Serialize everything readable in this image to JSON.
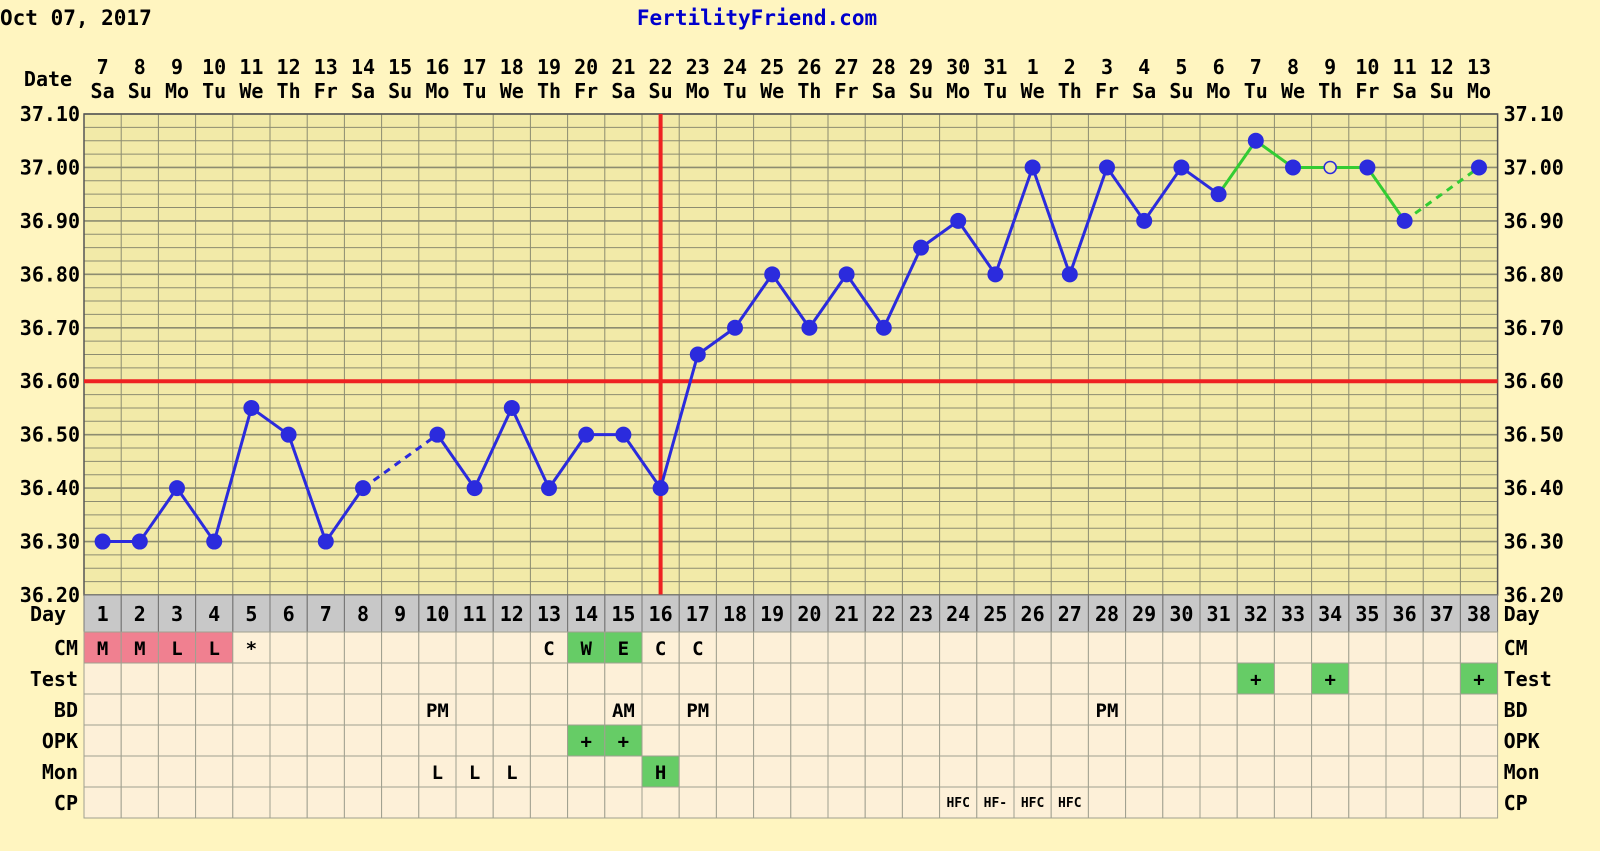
{
  "header": {
    "date": "Oct 07, 2017",
    "site": "FertilityFriend.com"
  },
  "chart_data": {
    "type": "line",
    "title": "",
    "ylim": [
      36.2,
      37.1
    ],
    "y_ticks": [
      "37.10",
      "37.00",
      "36.90",
      "36.80",
      "36.70",
      "36.60",
      "36.50",
      "36.40",
      "36.30",
      "36.20"
    ],
    "date_label": "Date",
    "day_label": "Day",
    "dates": [
      "7",
      "8",
      "9",
      "10",
      "11",
      "12",
      "13",
      "14",
      "15",
      "16",
      "17",
      "18",
      "19",
      "20",
      "21",
      "22",
      "23",
      "24",
      "25",
      "26",
      "27",
      "28",
      "29",
      "30",
      "31",
      "1",
      "2",
      "3",
      "4",
      "5",
      "6",
      "7",
      "8",
      "9",
      "10",
      "11",
      "12",
      "13"
    ],
    "weekdays": [
      "Sa",
      "Su",
      "Mo",
      "Tu",
      "We",
      "Th",
      "Fr",
      "Sa",
      "Su",
      "Mo",
      "Tu",
      "We",
      "Th",
      "Fr",
      "Sa",
      "Su",
      "Mo",
      "Tu",
      "We",
      "Th",
      "Fr",
      "Sa",
      "Su",
      "Mo",
      "Tu",
      "We",
      "Th",
      "Fr",
      "Sa",
      "Su",
      "Mo",
      "Tu",
      "We",
      "Th",
      "Fr",
      "Sa",
      "Su",
      "Mo"
    ],
    "days": [
      "1",
      "2",
      "3",
      "4",
      "5",
      "6",
      "7",
      "8",
      "9",
      "10",
      "11",
      "12",
      "13",
      "14",
      "15",
      "16",
      "17",
      "18",
      "19",
      "20",
      "21",
      "22",
      "23",
      "24",
      "25",
      "26",
      "27",
      "28",
      "29",
      "30",
      "31",
      "32",
      "33",
      "34",
      "35",
      "36",
      "37",
      "38"
    ],
    "temps": [
      36.3,
      36.3,
      36.4,
      36.3,
      36.55,
      36.5,
      36.3,
      36.4,
      null,
      36.5,
      36.4,
      36.55,
      36.4,
      36.5,
      36.5,
      36.4,
      36.65,
      36.7,
      36.8,
      36.7,
      36.8,
      36.7,
      36.85,
      36.9,
      36.8,
      37.0,
      36.8,
      37.0,
      36.9,
      37.0,
      36.95,
      37.05,
      37.0,
      37.0,
      37.0,
      36.9,
      null,
      37.0
    ],
    "open_point_days": [
      34
    ],
    "coverline": 36.6,
    "ovulation_day": 16,
    "series_colors": {
      "pre": "#2b2bdd",
      "post": "#33cc33",
      "lines": "#ee2222"
    },
    "rows": [
      {
        "label": "CM",
        "cells": {
          "1": "M",
          "2": "M",
          "3": "L",
          "4": "L",
          "5": "*",
          "13": "C",
          "14": "W",
          "15": "E",
          "16": "C",
          "17": "C"
        }
      },
      {
        "label": "Test",
        "cells": {
          "32": "+",
          "34": "+",
          "38": "+"
        }
      },
      {
        "label": "BD",
        "cells": {
          "10": "PM",
          "15": "AM",
          "17": "PM",
          "28": "PM"
        }
      },
      {
        "label": "OPK",
        "cells": {
          "14": "+",
          "15": "+"
        }
      },
      {
        "label": "Mon",
        "cells": {
          "10": "L",
          "11": "L",
          "12": "L",
          "16": "H"
        }
      },
      {
        "label": "CP",
        "cells": {
          "24": "HFC",
          "25": "HF-",
          "26": "HFC",
          "27": "HFC"
        }
      }
    ],
    "cell_fills": {
      "CM": {
        "1": "#f08090",
        "2": "#f08090",
        "3": "#f08090",
        "4": "#f08090",
        "14": "#66cc66",
        "15": "#66cc66"
      },
      "Test": {
        "32": "#66cc66",
        "34": "#66cc66",
        "38": "#66cc66"
      },
      "OPK": {
        "14": "#66cc66",
        "15": "#66cc66"
      },
      "Mon": {
        "16": "#66cc66"
      }
    }
  }
}
